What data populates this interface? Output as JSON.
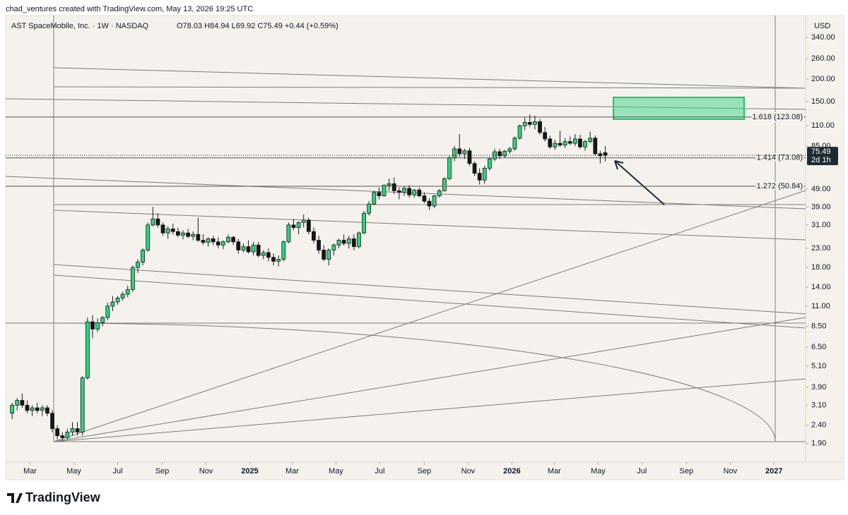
{
  "header": {
    "attribution": "chad_ventures created with TradingView.com, May 13, 2026 19:25 UTC"
  },
  "footer": {
    "brand": "TradingView"
  },
  "chart_data": {
    "type": "candlestick",
    "title": "AST SpaceMobile, Inc. · 1W · NASDAQ",
    "ohlc_text": "O78.03 H84.94 L69.92 C75.49 +0.44 (+0.59%)",
    "currency": "USD",
    "countdown": "2d 1h",
    "log_scale": true,
    "up_color": "#2fd27f",
    "down_color": "#161616",
    "x": [
      "2024-02-05",
      "2024-02-12",
      "2024-02-19",
      "2024-02-26",
      "2024-03-04",
      "2024-03-11",
      "2024-03-18",
      "2024-03-25",
      "2024-04-01",
      "2024-04-08",
      "2024-04-15",
      "2024-04-22",
      "2024-04-29",
      "2024-05-06",
      "2024-05-13",
      "2024-05-20",
      "2024-05-27",
      "2024-06-03",
      "2024-06-10",
      "2024-06-17",
      "2024-06-24",
      "2024-07-01",
      "2024-07-08",
      "2024-07-15",
      "2024-07-22",
      "2024-07-29",
      "2024-08-05",
      "2024-08-12",
      "2024-08-19",
      "2024-08-26",
      "2024-09-02",
      "2024-09-09",
      "2024-09-16",
      "2024-09-23",
      "2024-09-30",
      "2024-10-07",
      "2024-10-14",
      "2024-10-21",
      "2024-10-28",
      "2024-11-04",
      "2024-11-11",
      "2024-11-18",
      "2024-11-25",
      "2024-12-02",
      "2024-12-09",
      "2024-12-16",
      "2024-12-23",
      "2024-12-30",
      "2025-01-06",
      "2025-01-13",
      "2025-01-20",
      "2025-01-27",
      "2025-02-03",
      "2025-02-10",
      "2025-02-17",
      "2025-02-24",
      "2025-03-03",
      "2025-03-10",
      "2025-03-17",
      "2025-03-24",
      "2025-03-31",
      "2025-04-07",
      "2025-04-14",
      "2025-04-21",
      "2025-04-28",
      "2025-05-05",
      "2025-05-12",
      "2025-05-19",
      "2025-05-26",
      "2025-06-02",
      "2025-06-09",
      "2025-06-16",
      "2025-06-23",
      "2025-06-30",
      "2025-07-07",
      "2025-07-14",
      "2025-07-21",
      "2025-07-28",
      "2025-08-04",
      "2025-08-11",
      "2025-08-18",
      "2025-08-25",
      "2025-09-01",
      "2025-09-08",
      "2025-09-15",
      "2025-09-22",
      "2025-09-29",
      "2025-10-06",
      "2025-10-13",
      "2025-10-20",
      "2025-10-27",
      "2025-11-03",
      "2025-11-10",
      "2025-11-17",
      "2025-11-24",
      "2025-12-01",
      "2025-12-08",
      "2025-12-15",
      "2025-12-22",
      "2025-12-29",
      "2026-01-05",
      "2026-01-12",
      "2026-01-19",
      "2026-01-26",
      "2026-02-02",
      "2026-02-09",
      "2026-02-16",
      "2026-02-23",
      "2026-03-02",
      "2026-03-09",
      "2026-03-16",
      "2026-03-23",
      "2026-03-30",
      "2026-04-06",
      "2026-04-13",
      "2026-04-20",
      "2026-04-27",
      "2026-05-04",
      "2026-05-11"
    ],
    "open": [
      2.8,
      3.1,
      3.3,
      3.1,
      2.9,
      3.0,
      2.9,
      3.0,
      2.8,
      2.3,
      2.1,
      2.05,
      2.2,
      2.3,
      2.2,
      4.4,
      9.0,
      8.2,
      8.9,
      9.5,
      11.0,
      11.6,
      12.2,
      12.8,
      13.6,
      18.0,
      19.3,
      22.5,
      31.0,
      33.5,
      31.0,
      28.0,
      29.5,
      28.5,
      27.2,
      28.0,
      26.8,
      27.5,
      25.5,
      24.8,
      26.0,
      25.0,
      24.0,
      25.0,
      26.5,
      25.0,
      22.5,
      23.5,
      22.0,
      24.0,
      21.0,
      21.8,
      20.5,
      19.5,
      20.0,
      25.0,
      31.0,
      30.0,
      32.0,
      33.0,
      28.5,
      25.5,
      22.5,
      20.0,
      22.5,
      24.0,
      25.5,
      24.5,
      26.0,
      23.5,
      28.0,
      36.0,
      40.5,
      47.0,
      45.0,
      51.5,
      52.5,
      48.0,
      47.0,
      49.5,
      45.5,
      48.5,
      45.0,
      42.0,
      39.5,
      45.0,
      48.0,
      56.0,
      73.0,
      82.0,
      77.0,
      80.0,
      68.0,
      60.0,
      55.0,
      64.0,
      72.0,
      79.0,
      75.0,
      79.5,
      82.0,
      94.0,
      110.0,
      115.0,
      112.0,
      116.0,
      101.0,
      93.0,
      84.0,
      88.0,
      86.0,
      90.0,
      88.0,
      93.0,
      84.0,
      90.0,
      94.0,
      77.0,
      78.03
    ],
    "high": [
      3.2,
      3.4,
      3.6,
      3.3,
      3.1,
      3.2,
      3.1,
      3.1,
      2.9,
      2.4,
      2.2,
      2.3,
      2.5,
      2.5,
      4.5,
      9.5,
      9.8,
      9.4,
      9.7,
      11.5,
      12.5,
      12.5,
      13.2,
      14.3,
      18.5,
      20.0,
      23.0,
      32.0,
      39.0,
      36.0,
      32.0,
      30.5,
      31.5,
      30.0,
      29.0,
      29.5,
      28.5,
      34.0,
      27.5,
      26.5,
      27.0,
      26.5,
      25.5,
      27.5,
      27.0,
      26.0,
      24.5,
      25.5,
      25.0,
      25.0,
      22.5,
      23.0,
      21.5,
      21.0,
      25.5,
      32.0,
      33.5,
      32.5,
      35.5,
      34.0,
      30.0,
      27.0,
      24.0,
      23.0,
      24.5,
      26.0,
      27.5,
      27.0,
      27.5,
      28.5,
      37.0,
      42.0,
      48.0,
      50.0,
      52.0,
      56.0,
      57.0,
      50.0,
      51.0,
      51.5,
      49.0,
      50.0,
      47.0,
      43.5,
      45.5,
      49.0,
      57.0,
      75.0,
      85.0,
      99.0,
      82.0,
      83.0,
      70.0,
      64.0,
      66.0,
      74.0,
      82.0,
      82.0,
      81.0,
      84.0,
      96.0,
      112.0,
      122.0,
      127.0,
      125.0,
      120.0,
      108.0,
      97.0,
      92.0,
      103.0,
      94.0,
      96.0,
      99.0,
      98.0,
      92.0,
      102.0,
      97.0,
      80.0,
      84.94
    ],
    "low": [
      2.6,
      2.9,
      3.0,
      2.8,
      2.7,
      2.8,
      2.7,
      2.7,
      2.2,
      2.0,
      1.97,
      2.0,
      2.1,
      2.1,
      2.1,
      4.3,
      7.3,
      7.9,
      8.5,
      9.2,
      10.3,
      11.2,
      11.8,
      12.3,
      13.2,
      16.8,
      18.5,
      22.0,
      30.5,
      30.0,
      27.0,
      26.0,
      27.5,
      26.5,
      25.8,
      26.2,
      25.5,
      25.0,
      24.0,
      23.5,
      24.0,
      23.0,
      22.8,
      24.5,
      24.0,
      21.5,
      21.8,
      21.5,
      21.0,
      20.5,
      20.0,
      19.5,
      18.5,
      18.3,
      19.5,
      24.5,
      29.0,
      27.5,
      30.0,
      27.5,
      24.5,
      21.5,
      19.5,
      18.5,
      21.0,
      23.0,
      23.8,
      23.0,
      22.5,
      23.0,
      27.5,
      35.0,
      40.0,
      43.0,
      44.5,
      48.0,
      46.0,
      43.0,
      45.0,
      44.0,
      44.0,
      44.0,
      41.0,
      37.5,
      38.5,
      44.0,
      47.5,
      55.0,
      70.0,
      74.0,
      72.0,
      66.0,
      58.0,
      52.0,
      52.5,
      62.0,
      70.0,
      72.0,
      73.0,
      77.0,
      80.0,
      92.0,
      104.0,
      108.0,
      105.0,
      98.0,
      90.0,
      82.0,
      81.0,
      84.0,
      83.0,
      86.0,
      85.0,
      82.0,
      80.0,
      88.0,
      75.0,
      68.0,
      69.92
    ],
    "close": [
      3.1,
      3.3,
      3.1,
      2.9,
      3.0,
      2.9,
      3.0,
      2.8,
      2.3,
      2.1,
      2.05,
      2.2,
      2.3,
      2.2,
      4.4,
      9.0,
      8.2,
      8.9,
      9.5,
      11.0,
      11.6,
      12.2,
      12.8,
      13.6,
      18.0,
      19.3,
      22.5,
      31.0,
      33.5,
      31.0,
      28.0,
      29.5,
      28.5,
      27.2,
      28.0,
      26.8,
      27.5,
      25.5,
      24.8,
      26.0,
      25.0,
      24.0,
      25.0,
      26.5,
      25.0,
      22.5,
      23.5,
      22.0,
      24.0,
      21.0,
      21.8,
      20.5,
      19.5,
      20.0,
      25.0,
      31.0,
      30.0,
      32.0,
      33.0,
      28.5,
      25.5,
      22.5,
      20.0,
      22.5,
      24.0,
      25.5,
      24.5,
      26.0,
      23.5,
      28.0,
      36.0,
      40.5,
      47.0,
      45.0,
      51.5,
      52.5,
      48.0,
      47.0,
      49.5,
      45.5,
      48.5,
      45.0,
      42.0,
      39.5,
      45.0,
      48.0,
      56.0,
      73.0,
      82.0,
      77.0,
      80.0,
      68.0,
      60.0,
      55.0,
      64.0,
      72.0,
      79.0,
      75.0,
      79.5,
      82.0,
      94.0,
      110.0,
      115.0,
      112.0,
      116.0,
      101.0,
      93.0,
      84.0,
      88.0,
      86.0,
      90.0,
      88.0,
      93.0,
      84.0,
      90.0,
      94.0,
      77.0,
      75.05,
      75.49
    ],
    "ylim": [
      1.5,
      450
    ],
    "yticks": [
      {
        "value": 1.9,
        "label": "1.90"
      },
      {
        "value": 2.4,
        "label": "2.40"
      },
      {
        "value": 3.1,
        "label": "3.10"
      },
      {
        "value": 3.9,
        "label": "3.90"
      },
      {
        "value": 5.1,
        "label": "5.10"
      },
      {
        "value": 6.5,
        "label": "6.50"
      },
      {
        "value": 8.5,
        "label": "8.50"
      },
      {
        "value": 11,
        "label": "11.00"
      },
      {
        "value": 14,
        "label": "14.00"
      },
      {
        "value": 18,
        "label": "18.00"
      },
      {
        "value": 23,
        "label": "23.00"
      },
      {
        "value": 31,
        "label": "31.00"
      },
      {
        "value": 39,
        "label": "39.00"
      },
      {
        "value": 49,
        "label": "49.00"
      },
      {
        "value": 85,
        "label": "85.00"
      },
      {
        "value": 110,
        "label": "110.00"
      },
      {
        "value": 150,
        "label": "150.00"
      },
      {
        "value": 200,
        "label": "200.00"
      },
      {
        "value": 260,
        "label": "260.00"
      },
      {
        "value": 340,
        "label": "340.00"
      }
    ],
    "xlim": [
      "2024-01-27",
      "2027-02-14"
    ],
    "xticks": [
      {
        "value": "2024-03-01",
        "label": "Mar"
      },
      {
        "value": "2024-05-01",
        "label": "May"
      },
      {
        "value": "2024-07-01",
        "label": "Jul"
      },
      {
        "value": "2024-09-01",
        "label": "Sep"
      },
      {
        "value": "2024-11-01",
        "label": "Nov"
      },
      {
        "value": "2025-01-01",
        "label": "2025"
      },
      {
        "value": "2025-03-01",
        "label": "Mar"
      },
      {
        "value": "2025-05-01",
        "label": "May"
      },
      {
        "value": "2025-07-01",
        "label": "Jul"
      },
      {
        "value": "2025-09-01",
        "label": "Sep"
      },
      {
        "value": "2025-11-01",
        "label": "Nov"
      },
      {
        "value": "2026-01-01",
        "label": "2026"
      },
      {
        "value": "2026-03-01",
        "label": "Mar"
      },
      {
        "value": "2026-05-01",
        "label": "May"
      },
      {
        "value": "2026-07-01",
        "label": "Jul"
      },
      {
        "value": "2026-09-01",
        "label": "Sep"
      },
      {
        "value": "2026-11-01",
        "label": "Nov"
      },
      {
        "value": "2027-01-01",
        "label": "2027"
      }
    ],
    "levels": [
      {
        "value": 123.08,
        "label": "1.618 (123.08)"
      },
      {
        "value": 73.08,
        "label": "1.414 (73.08)"
      },
      {
        "value": 50.84,
        "label": "1.272 (50.84)"
      }
    ]
  }
}
